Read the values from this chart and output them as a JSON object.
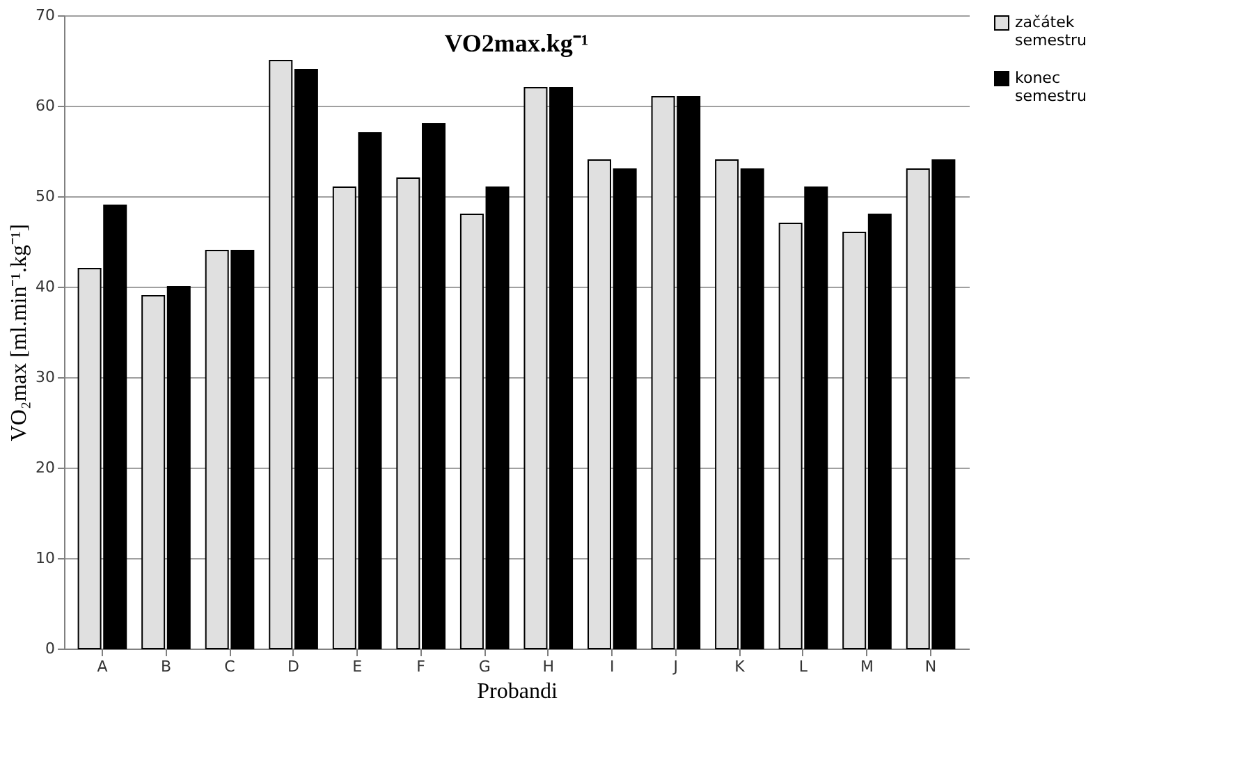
{
  "chart_data": {
    "type": "bar",
    "title": "VO2max.kg⁻¹",
    "xlabel": "Probandi",
    "ylabel": "VO₂max [ml.min⁻¹.kg⁻¹]",
    "categories": [
      "A",
      "B",
      "C",
      "D",
      "E",
      "F",
      "G",
      "H",
      "I",
      "J",
      "K",
      "L",
      "M",
      "N"
    ],
    "series": [
      {
        "name": "začátek semestru",
        "color": "#e0e0e0",
        "values": [
          42,
          39,
          44,
          65,
          51,
          52,
          48,
          62,
          54,
          61,
          54,
          47,
          46,
          53
        ]
      },
      {
        "name": "konec semestru",
        "color": "#000000",
        "values": [
          49,
          40,
          44,
          64,
          57,
          58,
          51,
          62,
          53,
          61,
          53,
          51,
          48,
          54
        ]
      }
    ],
    "ylim": [
      0,
      70
    ],
    "yticks": [
      0,
      10,
      20,
      30,
      40,
      50,
      60,
      70
    ],
    "grid": "y",
    "legend": "right"
  }
}
